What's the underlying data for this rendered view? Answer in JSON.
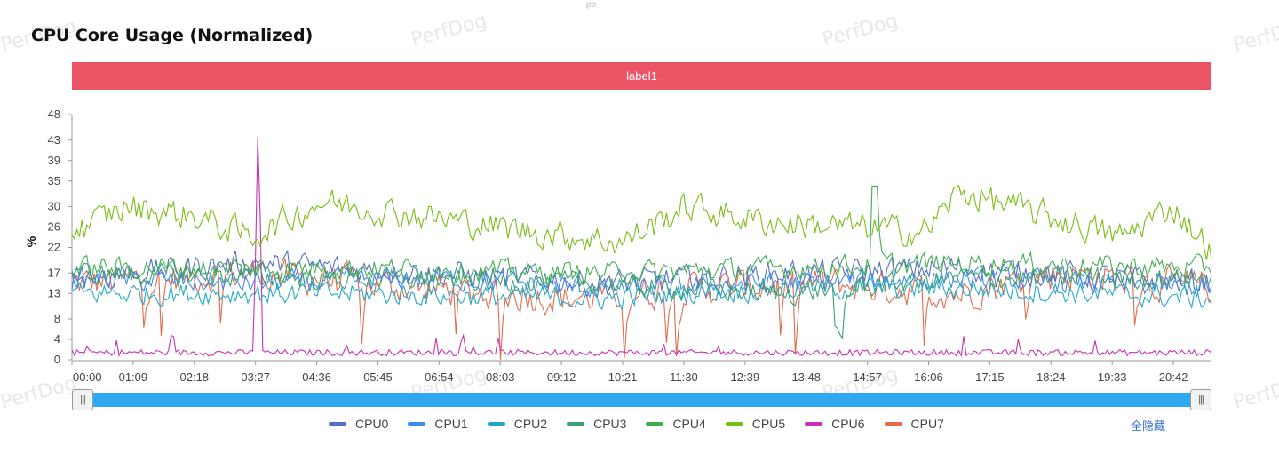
{
  "watermark": "PerfDog",
  "top_mark": "pp",
  "chart_data": {
    "type": "line",
    "title": "CPU Core Usage (Normalized)",
    "label_band": "label1",
    "ylabel": "%",
    "ylim": [
      0,
      48
    ],
    "yticks": [
      0,
      4,
      8,
      13,
      17,
      22,
      26,
      30,
      35,
      39,
      43,
      48
    ],
    "xlim_seconds": [
      0,
      1285
    ],
    "xticks": [
      "00:00",
      "01:09",
      "02:18",
      "03:27",
      "04:36",
      "05:45",
      "06:54",
      "08:03",
      "09:12",
      "10:21",
      "11:30",
      "12:39",
      "13:48",
      "14:57",
      "16:06",
      "17:15",
      "18:24",
      "19:33",
      "20:42"
    ],
    "points": 460,
    "series": [
      {
        "name": "CPU0",
        "color": "#5470c6",
        "level": [
          [
            0,
            16
          ],
          [
            200,
            19
          ],
          [
            400,
            17
          ],
          [
            600,
            15
          ],
          [
            800,
            17
          ],
          [
            1000,
            18
          ],
          [
            1285,
            15
          ]
        ],
        "noise": 3.5
      },
      {
        "name": "CPU1",
        "color": "#3d8bf0",
        "level": [
          [
            0,
            16
          ],
          [
            200,
            15
          ],
          [
            400,
            16
          ],
          [
            600,
            14
          ],
          [
            800,
            15
          ],
          [
            1000,
            16
          ],
          [
            1285,
            14
          ]
        ],
        "noise": 3
      },
      {
        "name": "CPU2",
        "color": "#22a9c6",
        "level": [
          [
            0,
            13
          ],
          [
            300,
            13
          ],
          [
            600,
            12
          ],
          [
            800,
            14
          ],
          [
            1000,
            14
          ],
          [
            1285,
            12
          ]
        ],
        "noise": 3
      },
      {
        "name": "CPU3",
        "color": "#3ba272",
        "level": [
          [
            0,
            17
          ],
          [
            300,
            16
          ],
          [
            600,
            15
          ],
          [
            800,
            13
          ],
          [
            1000,
            16
          ],
          [
            1285,
            16
          ]
        ],
        "noise": 3
      },
      {
        "name": "CPU4",
        "color": "#3fae4f",
        "level": [
          [
            0,
            18
          ],
          [
            300,
            18
          ],
          [
            600,
            17
          ],
          [
            800,
            18
          ],
          [
            1000,
            19
          ],
          [
            1285,
            18
          ]
        ],
        "noise": 3
      },
      {
        "name": "CPU5",
        "color": "#79bd12",
        "level": [
          [
            0,
            25
          ],
          [
            60,
            30
          ],
          [
            140,
            28
          ],
          [
            200,
            24
          ],
          [
            280,
            31
          ],
          [
            400,
            28
          ],
          [
            520,
            25
          ],
          [
            620,
            23
          ],
          [
            690,
            30
          ],
          [
            780,
            27
          ],
          [
            880,
            26
          ],
          [
            960,
            25
          ],
          [
            1000,
            33
          ],
          [
            1100,
            28
          ],
          [
            1180,
            24
          ],
          [
            1240,
            30
          ],
          [
            1285,
            21
          ]
        ],
        "noise": 4
      },
      {
        "name": "CPU6",
        "color": "#c832b0",
        "level": [
          [
            0,
            0.8
          ],
          [
            1285,
            0.8
          ]
        ],
        "noise": 1.2
      },
      {
        "name": "CPU7",
        "color": "#e06b4f",
        "level": [
          [
            0,
            15
          ],
          [
            200,
            17
          ],
          [
            400,
            14
          ],
          [
            560,
            12
          ],
          [
            700,
            14
          ],
          [
            850,
            15
          ],
          [
            1000,
            13
          ],
          [
            1100,
            17
          ],
          [
            1285,
            14
          ]
        ],
        "noise": 4.5
      }
    ]
  },
  "legend": [
    "CPU0",
    "CPU1",
    "CPU2",
    "CPU3",
    "CPU4",
    "CPU5",
    "CPU6",
    "CPU7"
  ],
  "hide_all_label": "全隐藏",
  "slider": {
    "left_handle": "|||",
    "right_handle": "|||"
  }
}
